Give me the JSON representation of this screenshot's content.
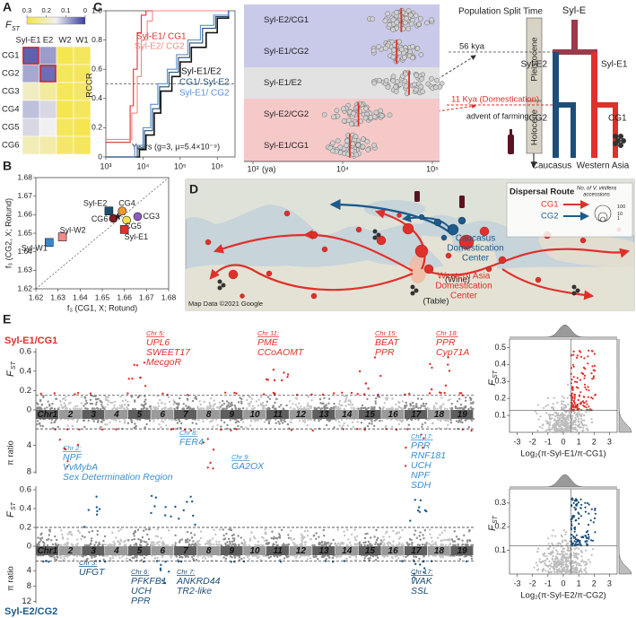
{
  "panel_labels": [
    "A",
    "B",
    "C",
    "D",
    "E"
  ],
  "heatmap": {
    "legend_title": "F",
    "legend_title_sub": "ST",
    "colorbar_ticks": [
      0.3,
      0.2,
      0.1,
      0
    ],
    "columns": [
      "Syl-E1",
      "E2",
      "W2",
      "W1"
    ],
    "rows": [
      "CG1",
      "CG2",
      "CG3",
      "CG4",
      "CG5",
      "CG6"
    ],
    "values": [
      [
        0.03,
        0.08,
        0.29,
        0.28
      ],
      [
        0.09,
        0.04,
        0.28,
        0.28
      ],
      [
        0.19,
        0.22,
        0.28,
        0.27
      ],
      [
        0.11,
        0.13,
        0.29,
        0.28
      ],
      [
        0.13,
        0.15,
        0.28,
        0.29
      ],
      [
        0.2,
        0.21,
        0.27,
        0.28
      ]
    ],
    "highlighted": [
      [
        0,
        0
      ],
      [
        1,
        1
      ]
    ],
    "highlight_color": "#d0262c"
  },
  "f3_scatter": {
    "type": "scatter",
    "xlabel": "f₃ (CG1, X; Rotund)",
    "ylabel": "f₃ (CG2, X; Rotund)",
    "xlim": [
      1.62,
      1.68
    ],
    "ylim": [
      1.62,
      1.68
    ],
    "xticks": [
      1.62,
      1.63,
      1.64,
      1.65,
      1.66,
      1.67,
      1.68
    ],
    "yticks": [
      1.62,
      1.63,
      1.64,
      1.65,
      1.66,
      1.67,
      1.68
    ],
    "points": [
      {
        "name": "Syl-W1",
        "x": 1.626,
        "y": 1.645,
        "color": "#3a85c8",
        "marker": "square"
      },
      {
        "name": "Syl-W2",
        "x": 1.632,
        "y": 1.648,
        "color": "#f08a8a",
        "marker": "square"
      },
      {
        "name": "Syl-E2",
        "x": 1.653,
        "y": 1.662,
        "color": "#1d4e6e",
        "marker": "square"
      },
      {
        "name": "CG4",
        "x": 1.659,
        "y": 1.662,
        "color": "#f29a2e",
        "marker": "circle"
      },
      {
        "name": "CG3",
        "x": 1.666,
        "y": 1.659,
        "color": "#8e5bc4",
        "marker": "circle"
      },
      {
        "name": "CG5",
        "x": 1.661,
        "y": 1.657,
        "color": "#f5e04a",
        "marker": "circle"
      },
      {
        "name": "CG6",
        "x": 1.655,
        "y": 1.658,
        "color": "#8b1a22",
        "marker": "circle"
      },
      {
        "name": "Syl-E1",
        "x": 1.66,
        "y": 1.652,
        "color": "#e0302a",
        "marker": "square"
      }
    ],
    "star": {
      "x": 1.657,
      "y": 1.659,
      "color": "#222222"
    }
  },
  "rccr": {
    "type": "line",
    "ylabel": "RCCR",
    "note": "Years (g=3, μ=5.4×10⁻⁹)",
    "xscale": "log",
    "xlim": [
      1000,
      3000000
    ],
    "ylim": [
      0,
      1
    ],
    "xticks": [
      {
        "value": 1000,
        "label": "10³"
      },
      {
        "value": 10000,
        "label": "10⁴"
      },
      {
        "value": 100000,
        "label": "10⁵"
      },
      {
        "value": 1000000,
        "label": "10⁶"
      }
    ],
    "yticks": [
      0,
      0.2,
      0.4,
      0.6,
      0.8,
      {
        "value": 1,
        "label": "1.0"
      }
    ],
    "threshold": 0.5,
    "series": [
      {
        "name": "Syl-E1/ CG1",
        "color": "#e0302a",
        "x": [
          1000,
          4500,
          5500,
          7000,
          9000,
          12000,
          2000000
        ],
        "values": [
          0.1,
          0.35,
          0.6,
          0.85,
          0.97,
          1,
          1
        ]
      },
      {
        "name": "Syl-E2/ CG2",
        "color": "#f08a80",
        "x": [
          1000,
          5000,
          7000,
          9000,
          13000,
          18000,
          2000000
        ],
        "values": [
          0.12,
          0.3,
          0.55,
          0.8,
          0.93,
          1,
          1
        ]
      },
      {
        "name": "Syl-E1/E2",
        "color": "#111111",
        "x": [
          1000,
          8000,
          12000,
          20000,
          30000,
          60000,
          100000,
          200000,
          500000,
          1000000,
          2000000
        ],
        "values": [
          0,
          0.05,
          0.15,
          0.3,
          0.45,
          0.55,
          0.65,
          0.75,
          0.85,
          0.95,
          1
        ]
      },
      {
        "name": "CG1/ Syl-E2",
        "color": "#1d4e79",
        "x": [
          1000,
          7000,
          11000,
          18000,
          28000,
          50000,
          90000,
          180000,
          400000,
          900000,
          2000000
        ],
        "values": [
          0,
          0.06,
          0.18,
          0.33,
          0.48,
          0.58,
          0.68,
          0.78,
          0.88,
          0.96,
          1
        ]
      },
      {
        "name": "Syl-E1/ CG2",
        "color": "#5b8fd0",
        "x": [
          1000,
          6000,
          10000,
          16000,
          25000,
          45000,
          80000,
          160000,
          350000,
          800000,
          2000000
        ],
        "values": [
          0,
          0.08,
          0.2,
          0.36,
          0.5,
          0.6,
          0.7,
          0.8,
          0.9,
          0.97,
          1
        ]
      }
    ]
  },
  "split_times": {
    "type": "swarm",
    "xscale": "log",
    "xlim": [
      1000,
      100000
    ],
    "xticks": [
      {
        "value": 1000,
        "label": "10³"
      },
      {
        "value": 10000,
        "label": "10⁴"
      },
      {
        "value": 100000,
        "label": "10⁵"
      }
    ],
    "x_unit": "(ya)",
    "median_color": "#e0302a",
    "rows": [
      {
        "name": "Syl-E2/CG1",
        "color": "#c9c9ea",
        "median": 45000
      },
      {
        "name": "Syl-E1/CG2",
        "color": "#c9c9ea",
        "median": 40000
      },
      {
        "name": "Syl-E1/E2",
        "color": "#e2e2e2",
        "median": 55000
      },
      {
        "name": "Syl-E2/CG2",
        "color": "#f6c9c9",
        "median": 15000
      },
      {
        "name": "Syl-E1/CG1",
        "color": "#f6c9c9",
        "median": 12000
      }
    ]
  },
  "split_tree": {
    "title": "Population Split Time",
    "root": "Syl-E",
    "epochs": [
      "Pleistocene",
      "Holocene"
    ],
    "events": [
      "56 kya",
      "11 Kya (Domestication)",
      "advent of farming"
    ],
    "nodes": [
      "Syl-E2",
      "Syl-E1",
      "CG2",
      "CG1"
    ],
    "regions": [
      "Caucasus",
      "Western Asia"
    ]
  },
  "map": {
    "legend_title": "Dispersal Route",
    "routes": [
      {
        "name": "CG1",
        "color": "#e0302a"
      },
      {
        "name": "CG2",
        "color": "#1d5a8a"
      }
    ],
    "size_title": [
      "No. of V. vinifera",
      "accessions"
    ],
    "size_ticks": [
      100,
      10,
      1
    ],
    "centers": [
      {
        "name_lines": [
          "Caucasus",
          "Domestication",
          "Center"
        ],
        "use": "(Wine)",
        "color": "#1d5a8a"
      },
      {
        "name_lines": [
          "Western Asia",
          "Domestication",
          "Center"
        ],
        "use": "(Table)",
        "color": "#e0302a"
      }
    ],
    "credit": "Map Data ©2021 Google"
  },
  "manhattan": {
    "chromosomes": [
      "Chr1",
      "2",
      "3",
      "4",
      "5",
      "6",
      "7",
      "8",
      "9",
      "10",
      "11",
      "12",
      "13",
      "14",
      "15",
      "16",
      "17",
      "18",
      "19"
    ],
    "fst_label": "F",
    "fst_sub": "ST",
    "pi_label": "π ratio",
    "panels": [
      {
        "name": "Syl-E1/CG1",
        "color": "#e0302a",
        "fst_ticks": [
          0.6,
          0.4,
          0.2,
          0
        ],
        "pi_ticks": [
          4,
          8
        ],
        "fst_threshold": 0.15,
        "pi_threshold": 1.5
      },
      {
        "name": "Syl-E2/CG2",
        "color": "#1d5a8a",
        "fst_ticks": [
          0.6,
          0.4,
          0.2,
          0
        ],
        "pi_ticks": [
          4,
          8,
          12
        ],
        "fst_threshold": 0.2,
        "pi_threshold": 1.5
      }
    ],
    "annotations": [
      {
        "chr": "Chr 5:",
        "genes": [
          "UPL6",
          "SWEET17",
          "MecgoR"
        ],
        "color": "#e0302a"
      },
      {
        "chr": "Chr 11:",
        "genes": [
          "PME",
          "CCoAOMT"
        ],
        "color": "#e0302a"
      },
      {
        "chr": "Chr 15:",
        "genes": [
          "BEAT",
          "PPR"
        ],
        "color": "#e0302a"
      },
      {
        "chr": "Chr 18:",
        "genes": [
          "PPR",
          "Cyp71A"
        ],
        "color": "#e0302a"
      },
      {
        "chr": "Chr 2:",
        "genes": [
          "NPF",
          "VvMybA",
          "Sex Determination Region"
        ],
        "color": "#3a8fd0"
      },
      {
        "chr": "Chr 8:",
        "genes": [
          "FER4"
        ],
        "color": "#3a8fd0"
      },
      {
        "chr": "Chr 9:",
        "genes": [
          "GA2OX"
        ],
        "color": "#3a8fd0"
      },
      {
        "chr": "Chr 17:",
        "genes": [
          "PPR",
          "RNF181",
          "UCH",
          "NPF",
          "SDH"
        ],
        "color": "#3a8fd0"
      },
      {
        "chr": "Chr 3:",
        "genes": [
          "UFGT"
        ],
        "color": "#1d4e79"
      },
      {
        "chr": "Chr 6:",
        "genes": [
          "PFKFB1",
          "UCH",
          "PPR"
        ],
        "color": "#1d4e79"
      },
      {
        "chr": "Chr 7:",
        "genes": [
          "ANKRD44",
          "TR2-like"
        ],
        "color": "#1d4e79"
      },
      {
        "chr": "Chr 17:",
        "genes": [
          "WAK",
          "SSL"
        ],
        "color": "#1d4e79"
      }
    ]
  },
  "pi_fst_scatter": [
    {
      "xlabel": "Log₂(π-Syl-E1/π-CG1)",
      "ylabel": "F",
      "ylabel_sub": "ST",
      "xlim": [
        -3.5,
        3.5
      ],
      "ylim": [
        0,
        0.55
      ],
      "xticks": [
        -3,
        -2,
        -1,
        0,
        1,
        2,
        3
      ],
      "yticks": [
        0.1,
        0.2,
        0.3,
        0.4,
        0.5
      ],
      "highlight_color": "#e0302a",
      "x_threshold": 0.5,
      "y_threshold": 0.13
    },
    {
      "xlabel": "Log₂(π-Syl-E2/π-CG2)",
      "ylabel": "F",
      "ylabel_sub": "ST",
      "xlim": [
        -3.5,
        3.5
      ],
      "ylim": [
        0,
        0.36
      ],
      "xticks": [
        -3,
        -2,
        -1,
        0,
        1,
        2,
        3
      ],
      "yticks": [
        0.1,
        0.2,
        0.3
      ],
      "highlight_color": "#1d4e79",
      "x_threshold": 0.5,
      "y_threshold": 0.12
    }
  ]
}
